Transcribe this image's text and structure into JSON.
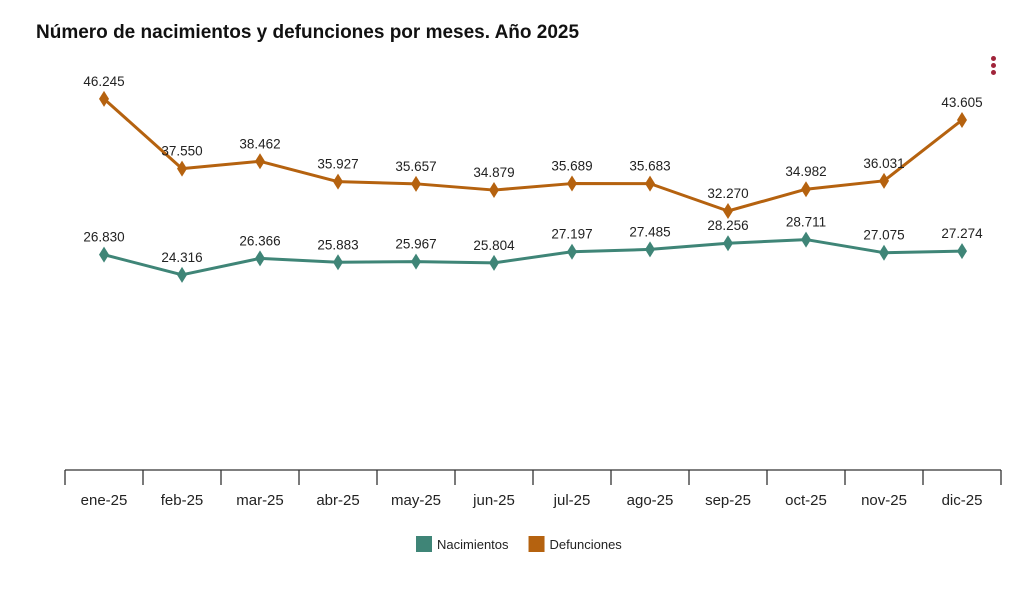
{
  "chart_data": {
    "type": "line",
    "title": "Número de nacimientos y defunciones por meses. Año 2025",
    "categories": [
      "ene-25",
      "feb-25",
      "mar-25",
      "abr-25",
      "may-25",
      "jun-25",
      "jul-25",
      "ago-25",
      "sep-25",
      "oct-25",
      "nov-25",
      "dic-25"
    ],
    "series": [
      {
        "name": "Nacimientos",
        "color": "#3f8577",
        "values": [
          26830,
          24316,
          26366,
          25883,
          25967,
          25804,
          27197,
          27485,
          28256,
          28711,
          27075,
          27274
        ],
        "labels": [
          "26.830",
          "24.316",
          "26.366",
          "25.883",
          "25.967",
          "25.804",
          "27.197",
          "27.485",
          "28.256",
          "28.711",
          "27.075",
          "27.274"
        ]
      },
      {
        "name": "Defunciones",
        "color": "#b5620f",
        "values": [
          46245,
          37550,
          38462,
          35927,
          35657,
          34879,
          35689,
          35683,
          32270,
          34982,
          36031,
          43605
        ],
        "labels": [
          "46.245",
          "37.550",
          "38.462",
          "35.927",
          "35.657",
          "34.879",
          "35.689",
          "35.683",
          "32.270",
          "34.982",
          "36.031",
          "43.605"
        ]
      }
    ],
    "ylim": [
      0,
      58000
    ],
    "grid": false,
    "legend": "bottom",
    "marker": "diamond"
  },
  "menu_icon": "vertical-dots-icon"
}
